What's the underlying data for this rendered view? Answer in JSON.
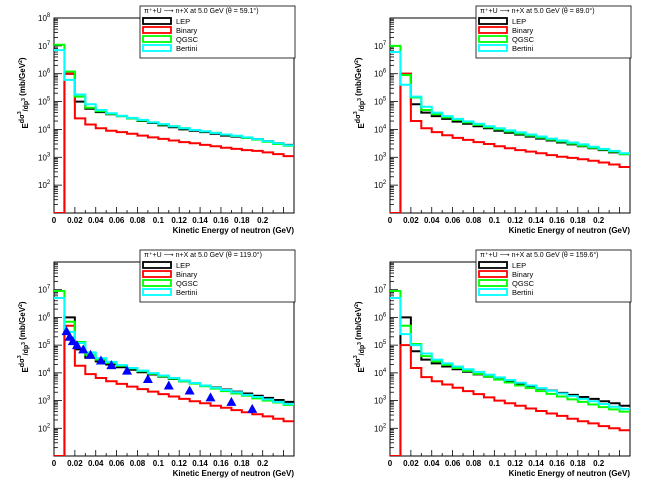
{
  "xlabel": "Kinetic Energy of neutron (GeV)",
  "ylabel_main": "d",
  "ylabel_sup": "3",
  "ylabel_E": "E",
  "ylabel_den": "dp",
  "ylabel_den_sup": "3",
  "ylabel_unit": "(mb/GeV",
  "ylabel_unit_sup": "2",
  "ylabel_unit_close": ")",
  "colors": {
    "LEP": "#000000",
    "Binary": "#ff0000",
    "QGSC": "#00ff00",
    "Bertini": "#00ffff",
    "data": "#0000ff"
  },
  "x_tick_labels": [
    "0",
    "0.02",
    "0.04",
    "0.06",
    "0.08",
    "0.1",
    "0.12",
    "0.14",
    "0.16",
    "0.18",
    "0.2"
  ],
  "chart_data": [
    {
      "type": "line",
      "title": "π⁺+U ⟶ n+X at 5.0 GeV (θ = 59.1°)",
      "xlim": [
        0,
        0.23
      ],
      "ylim_exp": [
        1,
        8
      ],
      "y_tick_exps": [
        2,
        3,
        4,
        5,
        6,
        7,
        8
      ],
      "log_y": true,
      "legend": "top-right",
      "x_edges": [
        0,
        0.01,
        0.02,
        0.03,
        0.04,
        0.05,
        0.06,
        0.07,
        0.08,
        0.09,
        0.1,
        0.11,
        0.12,
        0.13,
        0.14,
        0.15,
        0.16,
        0.17,
        0.18,
        0.19,
        0.2,
        0.21,
        0.22,
        0.23
      ],
      "series": [
        {
          "name": "LEP",
          "values": [
            0,
            1000000,
            100000,
            55000,
            42000,
            35000,
            30000,
            25000,
            20000,
            17000,
            14000,
            12000,
            10000,
            9000,
            8000,
            7000,
            6000,
            5500,
            5000,
            4500,
            3800,
            3200,
            2800
          ]
        },
        {
          "name": "Binary",
          "values": [
            0,
            1000000,
            25000,
            15000,
            11000,
            9000,
            8000,
            7000,
            6000,
            5200,
            4600,
            4000,
            3500,
            3200,
            2800,
            2500,
            2200,
            2000,
            1800,
            1700,
            1500,
            1300,
            1100
          ]
        },
        {
          "name": "QGSC",
          "values": [
            11000000,
            1200000,
            150000,
            60000,
            45000,
            36000,
            30000,
            25000,
            21000,
            18000,
            15000,
            13000,
            11000,
            9500,
            8500,
            7500,
            6500,
            5800,
            5000,
            4300,
            3600,
            3000,
            2600
          ]
        },
        {
          "name": "Bertini",
          "values": [
            7000000,
            600000,
            180000,
            80000,
            50000,
            38000,
            31000,
            26000,
            22000,
            18000,
            15500,
            13000,
            11000,
            9500,
            8500,
            7500,
            6600,
            5900,
            5200,
            4500,
            3800,
            3200,
            2700
          ]
        }
      ]
    },
    {
      "type": "line",
      "title": "π⁺+U ⟶ n+X at 5.0 GeV (θ = 89.0°)",
      "xlim": [
        0,
        0.23
      ],
      "ylim_exp": [
        1,
        8
      ],
      "y_tick_exps": [
        2,
        3,
        4,
        5,
        6,
        7
      ],
      "log_y": true,
      "legend": "top-right",
      "x_edges": [
        0,
        0.01,
        0.02,
        0.03,
        0.04,
        0.05,
        0.06,
        0.07,
        0.08,
        0.09,
        0.1,
        0.11,
        0.12,
        0.13,
        0.14,
        0.15,
        0.16,
        0.17,
        0.18,
        0.19,
        0.2,
        0.21,
        0.22,
        0.23
      ],
      "series": [
        {
          "name": "LEP",
          "values": [
            0,
            1000000,
            80000,
            40000,
            30000,
            24000,
            19000,
            16000,
            13000,
            11000,
            9000,
            7600,
            6500,
            5500,
            4700,
            4000,
            3400,
            2900,
            2500,
            2100,
            1800,
            1500,
            1300
          ]
        },
        {
          "name": "Binary",
          "values": [
            0,
            1000000,
            20000,
            11000,
            8000,
            6200,
            5000,
            4200,
            3500,
            3000,
            2500,
            2100,
            1800,
            1600,
            1400,
            1200,
            1050,
            950,
            850,
            750,
            650,
            550,
            450
          ]
        },
        {
          "name": "QGSC",
          "values": [
            10000000,
            900000,
            140000,
            50000,
            35000,
            27000,
            22000,
            18000,
            14500,
            12000,
            10000,
            8400,
            7100,
            6000,
            5100,
            4300,
            3700,
            3100,
            2600,
            2200,
            1900,
            1600,
            1300
          ]
        },
        {
          "name": "Bertini",
          "values": [
            6000000,
            400000,
            150000,
            65000,
            40000,
            30000,
            24000,
            19500,
            16000,
            13000,
            11000,
            9200,
            7800,
            6600,
            5600,
            4700,
            4000,
            3400,
            2900,
            2400,
            2000,
            1700,
            1400
          ]
        }
      ]
    },
    {
      "type": "line",
      "title": "π⁺+U ⟶ n+X at 5.0 GeV (θ = 119.0°)",
      "xlim": [
        0,
        0.23
      ],
      "ylim_exp": [
        1,
        8
      ],
      "y_tick_exps": [
        2,
        3,
        4,
        5,
        6,
        7
      ],
      "log_y": true,
      "legend": "top-right",
      "x_edges": [
        0,
        0.01,
        0.02,
        0.03,
        0.04,
        0.05,
        0.06,
        0.07,
        0.08,
        0.09,
        0.1,
        0.11,
        0.12,
        0.13,
        0.14,
        0.15,
        0.16,
        0.17,
        0.18,
        0.19,
        0.2,
        0.21,
        0.22,
        0.23
      ],
      "series": [
        {
          "name": "LEP",
          "values": [
            0,
            1000000,
            70000,
            35000,
            26000,
            20000,
            16000,
            13000,
            10500,
            8700,
            7200,
            6000,
            5000,
            4200,
            3500,
            3000,
            2500,
            2100,
            1800,
            1500,
            1250,
            1050,
            900
          ]
        },
        {
          "name": "Binary",
          "values": [
            0,
            500000,
            18000,
            9000,
            6500,
            5000,
            4000,
            3200,
            2600,
            2100,
            1700,
            1400,
            1150,
            950,
            800,
            650,
            550,
            450,
            380,
            320,
            270,
            220,
            180
          ]
        },
        {
          "name": "QGSC",
          "values": [
            9000000,
            700000,
            130000,
            45000,
            30000,
            23000,
            18000,
            14500,
            11500,
            9300,
            7500,
            6200,
            5000,
            4100,
            3300,
            2700,
            2200,
            1800,
            1500,
            1200,
            1000,
            850,
            700
          ]
        },
        {
          "name": "Bertini",
          "values": [
            5000000,
            300000,
            120000,
            55000,
            34000,
            25000,
            19000,
            15000,
            12000,
            9800,
            8000,
            6500,
            5300,
            4300,
            3500,
            2900,
            2400,
            2000,
            1600,
            1350,
            1100,
            900,
            750
          ]
        }
      ],
      "points": {
        "name": "Data",
        "x": [
          0.012,
          0.015,
          0.018,
          0.022,
          0.028,
          0.035,
          0.045,
          0.055,
          0.07,
          0.09,
          0.11,
          0.13,
          0.15,
          0.17,
          0.19
        ],
        "y": [
          320000,
          200000,
          140000,
          100000,
          70000,
          45000,
          28000,
          19000,
          12000,
          6000,
          3500,
          2300,
          1300,
          900,
          500
        ]
      }
    },
    {
      "type": "line",
      "title": "π⁺+U ⟶ n+X at 5.0 GeV (θ = 159.6°)",
      "xlim": [
        0,
        0.23
      ],
      "ylim_exp": [
        1,
        8
      ],
      "y_tick_exps": [
        2,
        3,
        4,
        5,
        6,
        7
      ],
      "log_y": true,
      "legend": "top-right",
      "x_edges": [
        0,
        0.01,
        0.02,
        0.03,
        0.04,
        0.05,
        0.06,
        0.07,
        0.08,
        0.09,
        0.1,
        0.11,
        0.12,
        0.13,
        0.14,
        0.15,
        0.16,
        0.17,
        0.18,
        0.19,
        0.2,
        0.21,
        0.22,
        0.23
      ],
      "series": [
        {
          "name": "LEP",
          "values": [
            0,
            1000000,
            60000,
            30000,
            22000,
            17000,
            13500,
            11000,
            8800,
            7200,
            5900,
            4900,
            4000,
            3300,
            2700,
            2300,
            1900,
            1600,
            1350,
            1150,
            950,
            800,
            650
          ]
        },
        {
          "name": "Binary",
          "values": [
            0,
            100000,
            15000,
            7000,
            5000,
            3800,
            2900,
            2200,
            1700,
            1300,
            1000,
            800,
            650,
            520,
            420,
            340,
            280,
            220,
            180,
            150,
            120,
            100,
            85
          ]
        },
        {
          "name": "QGSC",
          "values": [
            9000000,
            500000,
            110000,
            40000,
            26000,
            19500,
            15000,
            11800,
            9200,
            7200,
            5700,
            4500,
            3500,
            2800,
            2200,
            1750,
            1400,
            1100,
            900,
            720,
            580,
            480,
            400
          ]
        },
        {
          "name": "Bertini",
          "values": [
            5000000,
            250000,
            100000,
            50000,
            30000,
            22000,
            17000,
            13500,
            10800,
            8600,
            6900,
            5500,
            4400,
            3500,
            2800,
            2250,
            1800,
            1450,
            1150,
            950,
            750,
            600,
            500
          ]
        }
      ]
    }
  ]
}
